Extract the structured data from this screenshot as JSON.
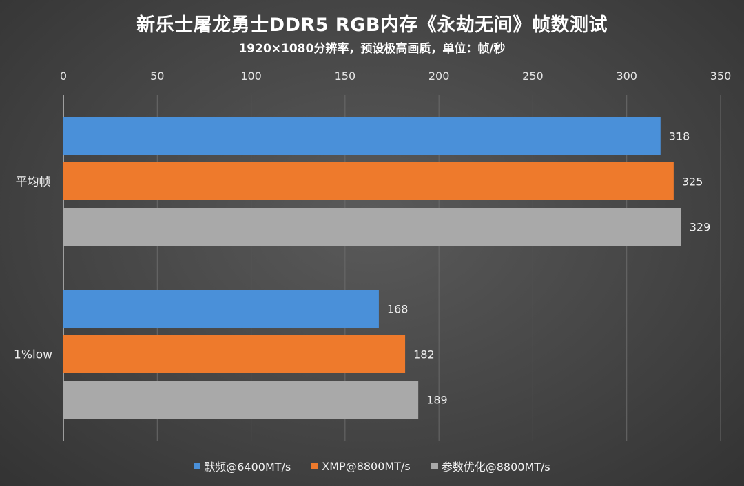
{
  "chart_data": {
    "type": "bar",
    "orientation": "horizontal",
    "title": "新乐士屠龙勇士DDR5 RGB内存《永劫无间》帧数测试",
    "subtitle": "1920×1080分辨率，预设极高画质，单位：帧/秒",
    "categories": [
      "平均帧",
      "1%low"
    ],
    "series": [
      {
        "name": "默频@6400MT/s",
        "color": "#4a90d9",
        "values": [
          318,
          168
        ]
      },
      {
        "name": "XMP@8800MT/s",
        "color": "#ee7a2c",
        "values": [
          325,
          182
        ]
      },
      {
        "name": "参数优化@8800MT/s",
        "color": "#a9a9a9",
        "values": [
          329,
          189
        ]
      }
    ],
    "xlim": [
      0,
      350
    ],
    "xticks": [
      0,
      50,
      100,
      150,
      200,
      250,
      300,
      350
    ],
    "x_axis_position": "top",
    "grid": true,
    "data_labels": true,
    "legend_position": "bottom"
  }
}
